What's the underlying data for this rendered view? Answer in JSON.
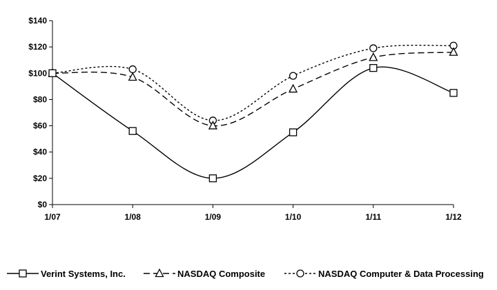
{
  "chart_data": {
    "type": "line",
    "title": "",
    "xlabel": "",
    "ylabel": "",
    "categories": [
      "1/07",
      "1/08",
      "1/09",
      "1/10",
      "1/11",
      "1/12"
    ],
    "y_ticks": [
      "$0",
      "$20",
      "$40",
      "$60",
      "$80",
      "$100",
      "$120",
      "$140"
    ],
    "ylim": [
      0,
      140
    ],
    "grid": false,
    "legend_position": "bottom",
    "series": [
      {
        "name": "Verint Systems, Inc.",
        "marker": "square",
        "dash": "solid",
        "color": "#000000",
        "values": [
          100,
          56,
          20,
          55,
          104,
          85
        ]
      },
      {
        "name": "NASDAQ Composite",
        "marker": "triangle",
        "dash": "dashed",
        "color": "#000000",
        "values": [
          100,
          97,
          60,
          88,
          112,
          116
        ]
      },
      {
        "name": "NASDAQ Computer & Data Processing",
        "marker": "circle",
        "dash": "dotted",
        "color": "#000000",
        "values": [
          100,
          103,
          64,
          98,
          119,
          121
        ]
      }
    ]
  }
}
